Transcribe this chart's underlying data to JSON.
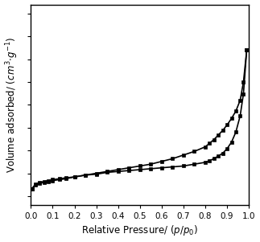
{
  "xlabel": "Relative Pressure/ (p/p$_0$)",
  "ylabel": "Volume adsorbed/ (cm$^3$$\\cdot$g$^{-1}$)",
  "xlim": [
    0.0,
    1.0
  ],
  "ylim": [
    40,
    260
  ],
  "xticks": [
    0.0,
    0.1,
    0.2,
    0.3,
    0.4,
    0.5,
    0.6,
    0.7,
    0.8,
    0.9,
    1.0
  ],
  "line_color": "#000000",
  "bg_color": "#ffffff",
  "adsorption_x": [
    0.005,
    0.02,
    0.04,
    0.06,
    0.08,
    0.1,
    0.13,
    0.16,
    0.2,
    0.25,
    0.3,
    0.35,
    0.4,
    0.45,
    0.5,
    0.55,
    0.6,
    0.65,
    0.7,
    0.75,
    0.8,
    0.82,
    0.84,
    0.86,
    0.88,
    0.9,
    0.92,
    0.94,
    0.96,
    0.975,
    0.99
  ],
  "adsorption_y": [
    58,
    62,
    64,
    65,
    66,
    67,
    68,
    69,
    71,
    73,
    74,
    76,
    77,
    78,
    79,
    80,
    81,
    82,
    83,
    85,
    87,
    89,
    91,
    94,
    97,
    102,
    109,
    120,
    138,
    162,
    210
  ],
  "desorption_x": [
    0.99,
    0.975,
    0.96,
    0.94,
    0.92,
    0.9,
    0.88,
    0.86,
    0.84,
    0.82,
    0.8,
    0.75,
    0.7,
    0.65,
    0.6,
    0.55,
    0.5,
    0.45,
    0.4,
    0.35,
    0.3,
    0.25,
    0.2,
    0.16,
    0.13,
    0.1,
    0.08,
    0.06,
    0.04,
    0.02,
    0.005
  ],
  "desorption_y": [
    210,
    175,
    155,
    143,
    135,
    128,
    122,
    117,
    112,
    108,
    104,
    99,
    95,
    91,
    88,
    85,
    83,
    81,
    79,
    77,
    75,
    73,
    71,
    70,
    69,
    68,
    67,
    66,
    65,
    63,
    58
  ],
  "marker": "s",
  "markersize": 3.0,
  "linewidth": 1.2,
  "xlabel_fontsize": 8.5,
  "ylabel_fontsize": 8.5,
  "tick_fontsize": 7.5
}
